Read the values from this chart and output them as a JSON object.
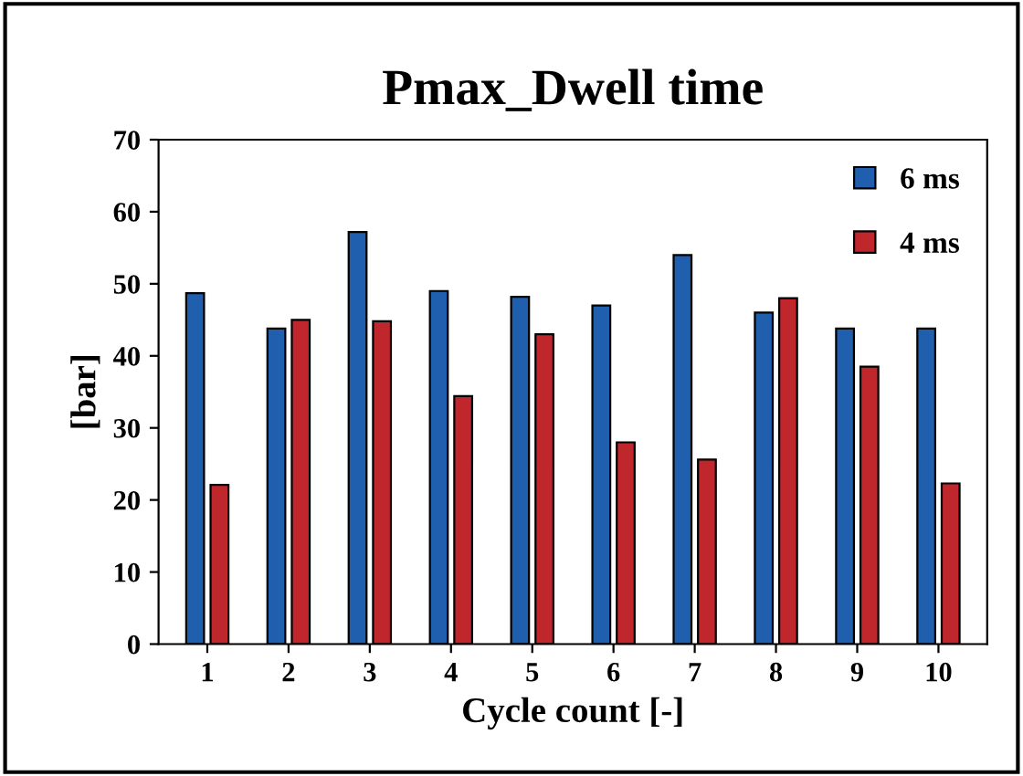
{
  "chart_data": {
    "type": "bar",
    "title": "Pmax_Dwell time",
    "xlabel": "Cycle count [-]",
    "ylabel": "[bar]",
    "categories": [
      "1",
      "2",
      "3",
      "4",
      "5",
      "6",
      "7",
      "8",
      "9",
      "10"
    ],
    "series": [
      {
        "name": "6 ms",
        "color": "#1f5fad",
        "values": [
          48.7,
          43.8,
          57.2,
          49.0,
          48.2,
          47.0,
          54.0,
          46.0,
          43.8,
          43.8
        ]
      },
      {
        "name": "4 ms",
        "color": "#c0272d",
        "values": [
          22.1,
          45.0,
          44.8,
          34.4,
          43.0,
          28.0,
          25.6,
          48.0,
          38.5,
          22.3
        ]
      }
    ],
    "ylim": [
      0,
      70
    ],
    "yticks": [
      0,
      10,
      20,
      30,
      40,
      50,
      60,
      70
    ],
    "grid": false,
    "legend": "top right"
  }
}
